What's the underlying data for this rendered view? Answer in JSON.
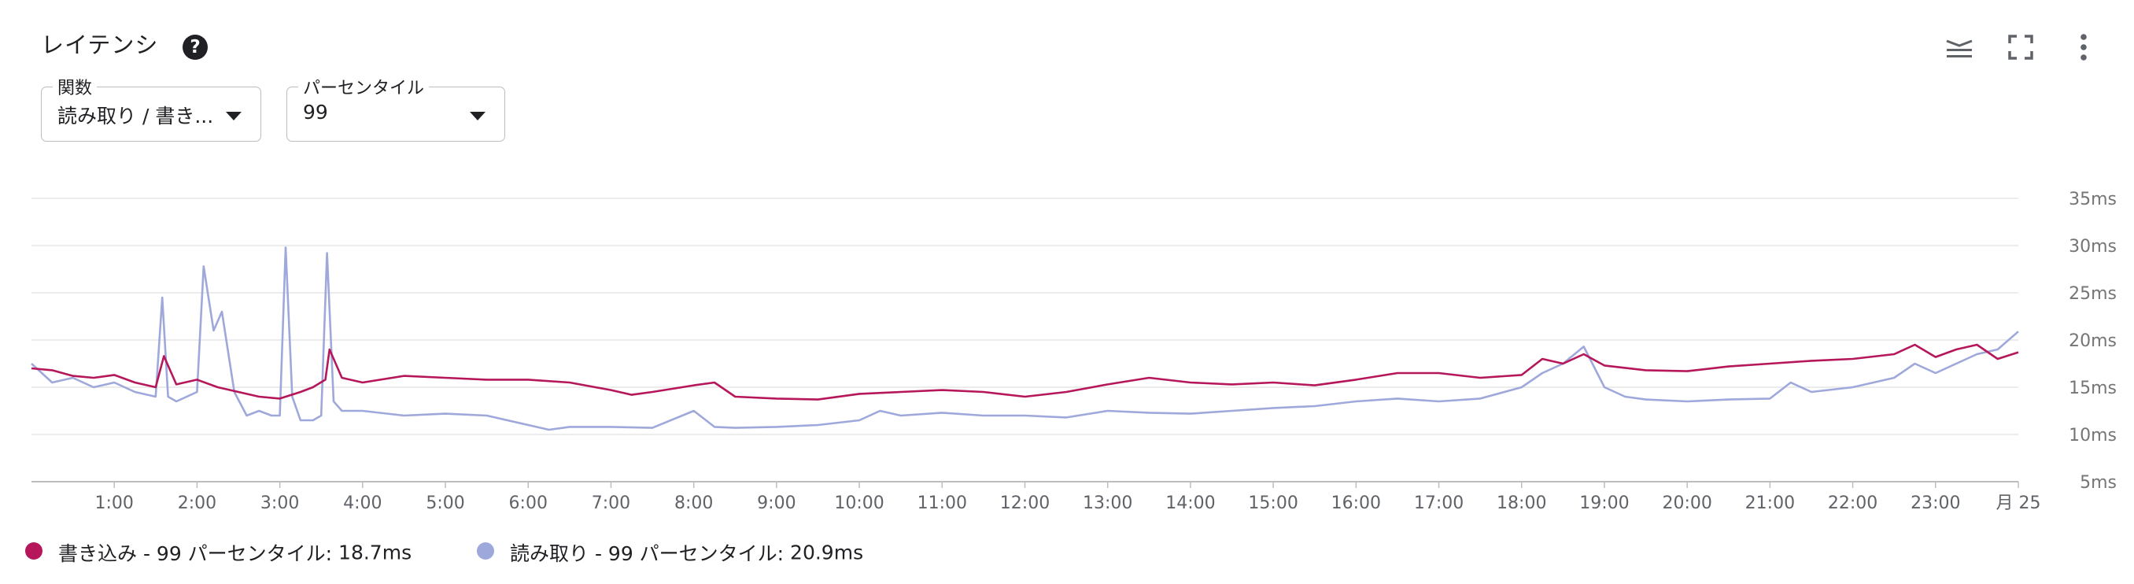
{
  "header": {
    "title": "レイテンシ",
    "help_icon": "?"
  },
  "toolbar_icons": [
    "legend-toggle-icon",
    "fullscreen-icon",
    "more-vert-icon"
  ],
  "filters": {
    "function": {
      "label": "関数",
      "value": "読み取り / 書き..."
    },
    "percentile": {
      "label": "パーセンタイル",
      "value": "99"
    }
  },
  "legend": {
    "write": {
      "label": "書き込み - 99 パーセンタイル: ",
      "value": "18.7ms",
      "color": "#b5175a"
    },
    "read": {
      "label": "読み取り - 99 パーセンタイル: ",
      "value": "20.9ms",
      "color": "#9fa8da"
    }
  },
  "chart_data": {
    "type": "line",
    "x_ticks": [
      "1:00",
      "2:00",
      "3:00",
      "4:00",
      "5:00",
      "6:00",
      "7:00",
      "8:00",
      "9:00",
      "10:00",
      "11:00",
      "12:00",
      "13:00",
      "14:00",
      "15:00",
      "16:00",
      "17:00",
      "18:00",
      "19:00",
      "20:00",
      "21:00",
      "22:00",
      "23:00",
      "月 25"
    ],
    "y_ticks": [
      "35ms",
      "30ms",
      "25ms",
      "20ms",
      "15ms",
      "10ms",
      "5ms"
    ],
    "ylim": [
      5,
      35
    ],
    "xlim_hours": [
      0,
      24
    ],
    "grid": true,
    "series": [
      {
        "name": "書き込み - 99 パーセンタイル",
        "color": "#b5175a",
        "x": [
          0.0,
          0.25,
          0.5,
          0.75,
          1.0,
          1.25,
          1.5,
          1.6,
          1.75,
          2.0,
          2.25,
          2.5,
          2.75,
          3.0,
          3.25,
          3.4,
          3.55,
          3.6,
          3.75,
          4.0,
          4.5,
          5.0,
          5.5,
          6.0,
          6.5,
          7.0,
          7.25,
          7.5,
          8.0,
          8.25,
          8.5,
          9.0,
          9.5,
          10.0,
          10.5,
          11.0,
          11.5,
          12.0,
          12.5,
          13.0,
          13.5,
          14.0,
          14.5,
          15.0,
          15.5,
          16.0,
          16.5,
          17.0,
          17.5,
          18.0,
          18.25,
          18.5,
          18.75,
          19.0,
          19.5,
          20.0,
          20.5,
          21.0,
          21.5,
          22.0,
          22.5,
          22.75,
          23.0,
          23.25,
          23.5,
          23.75,
          24.0
        ],
        "y": [
          17.0,
          16.8,
          16.2,
          16.0,
          16.3,
          15.5,
          15.0,
          18.3,
          15.3,
          15.8,
          15.0,
          14.5,
          14.0,
          13.8,
          14.5,
          15.0,
          15.8,
          19.0,
          16.0,
          15.5,
          16.2,
          16.0,
          15.8,
          15.8,
          15.5,
          14.7,
          14.2,
          14.5,
          15.2,
          15.5,
          14.0,
          13.8,
          13.7,
          14.3,
          14.5,
          14.7,
          14.5,
          14.0,
          14.5,
          15.3,
          16.0,
          15.5,
          15.3,
          15.5,
          15.2,
          15.8,
          16.5,
          16.5,
          16.0,
          16.3,
          18.0,
          17.5,
          18.5,
          17.3,
          16.8,
          16.7,
          17.2,
          17.5,
          17.8,
          18.0,
          18.5,
          19.5,
          18.2,
          19.0,
          19.5,
          18.0,
          18.7
        ]
      },
      {
        "name": "読み取り - 99 パーセンタイル",
        "color": "#9fa8da",
        "x": [
          0.0,
          0.25,
          0.5,
          0.75,
          1.0,
          1.25,
          1.5,
          1.58,
          1.65,
          1.75,
          2.0,
          2.08,
          2.2,
          2.3,
          2.45,
          2.6,
          2.75,
          2.9,
          3.0,
          3.07,
          3.15,
          3.25,
          3.4,
          3.5,
          3.57,
          3.65,
          3.75,
          4.0,
          4.5,
          5.0,
          5.5,
          6.0,
          6.25,
          6.5,
          7.0,
          7.5,
          8.0,
          8.25,
          8.5,
          9.0,
          9.5,
          10.0,
          10.25,
          10.5,
          11.0,
          11.5,
          12.0,
          12.5,
          13.0,
          13.5,
          14.0,
          14.5,
          15.0,
          15.5,
          16.0,
          16.5,
          17.0,
          17.5,
          18.0,
          18.25,
          18.5,
          18.75,
          19.0,
          19.25,
          19.5,
          20.0,
          20.5,
          21.0,
          21.25,
          21.5,
          22.0,
          22.5,
          22.75,
          23.0,
          23.25,
          23.5,
          23.75,
          24.0
        ],
        "y": [
          17.5,
          15.5,
          16.0,
          15.0,
          15.5,
          14.5,
          14.0,
          24.5,
          14.0,
          13.5,
          14.5,
          27.8,
          21.0,
          23.0,
          14.5,
          12.0,
          12.5,
          12.0,
          12.0,
          29.8,
          14.0,
          11.5,
          11.5,
          12.0,
          29.2,
          13.5,
          12.5,
          12.5,
          12.0,
          12.2,
          12.0,
          11.0,
          10.5,
          10.8,
          10.8,
          10.7,
          12.5,
          10.8,
          10.7,
          10.8,
          11.0,
          11.5,
          12.5,
          12.0,
          12.3,
          12.0,
          12.0,
          11.8,
          12.5,
          12.3,
          12.2,
          12.5,
          12.8,
          13.0,
          13.5,
          13.8,
          13.5,
          13.8,
          15.0,
          16.5,
          17.5,
          19.3,
          15.0,
          14.0,
          13.7,
          13.5,
          13.7,
          13.8,
          15.5,
          14.5,
          15.0,
          16.0,
          17.5,
          16.5,
          17.5,
          18.5,
          19.0,
          20.9
        ]
      }
    ]
  }
}
